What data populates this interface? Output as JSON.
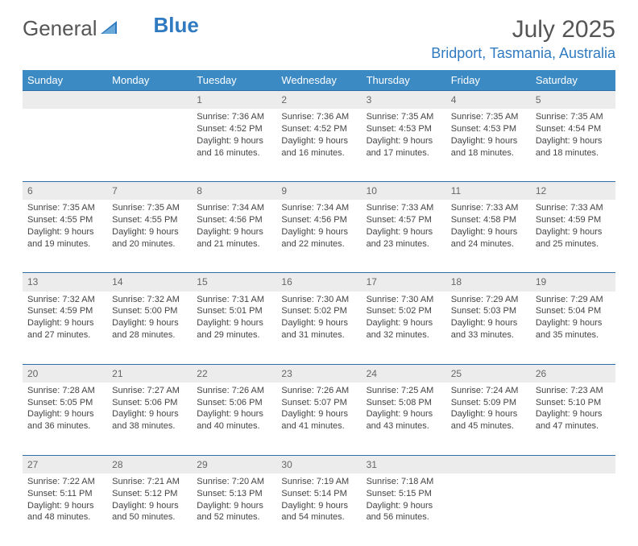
{
  "logo": {
    "general": "General",
    "blue": "Blue"
  },
  "title": "July 2025",
  "location": "Bridport, Tasmania, Australia",
  "colors": {
    "header_bg": "#3b8ac4",
    "accent": "#2f7ac0",
    "daynum_bg": "#ececec",
    "row_border": "#2f6fa8",
    "text": "#444444"
  },
  "weekdays": [
    "Sunday",
    "Monday",
    "Tuesday",
    "Wednesday",
    "Thursday",
    "Friday",
    "Saturday"
  ],
  "weeks": [
    [
      null,
      null,
      {
        "n": "1",
        "sr": "Sunrise: 7:36 AM",
        "ss": "Sunset: 4:52 PM",
        "dl1": "Daylight: 9 hours",
        "dl2": "and 16 minutes."
      },
      {
        "n": "2",
        "sr": "Sunrise: 7:36 AM",
        "ss": "Sunset: 4:52 PM",
        "dl1": "Daylight: 9 hours",
        "dl2": "and 16 minutes."
      },
      {
        "n": "3",
        "sr": "Sunrise: 7:35 AM",
        "ss": "Sunset: 4:53 PM",
        "dl1": "Daylight: 9 hours",
        "dl2": "and 17 minutes."
      },
      {
        "n": "4",
        "sr": "Sunrise: 7:35 AM",
        "ss": "Sunset: 4:53 PM",
        "dl1": "Daylight: 9 hours",
        "dl2": "and 18 minutes."
      },
      {
        "n": "5",
        "sr": "Sunrise: 7:35 AM",
        "ss": "Sunset: 4:54 PM",
        "dl1": "Daylight: 9 hours",
        "dl2": "and 18 minutes."
      }
    ],
    [
      {
        "n": "6",
        "sr": "Sunrise: 7:35 AM",
        "ss": "Sunset: 4:55 PM",
        "dl1": "Daylight: 9 hours",
        "dl2": "and 19 minutes."
      },
      {
        "n": "7",
        "sr": "Sunrise: 7:35 AM",
        "ss": "Sunset: 4:55 PM",
        "dl1": "Daylight: 9 hours",
        "dl2": "and 20 minutes."
      },
      {
        "n": "8",
        "sr": "Sunrise: 7:34 AM",
        "ss": "Sunset: 4:56 PM",
        "dl1": "Daylight: 9 hours",
        "dl2": "and 21 minutes."
      },
      {
        "n": "9",
        "sr": "Sunrise: 7:34 AM",
        "ss": "Sunset: 4:56 PM",
        "dl1": "Daylight: 9 hours",
        "dl2": "and 22 minutes."
      },
      {
        "n": "10",
        "sr": "Sunrise: 7:33 AM",
        "ss": "Sunset: 4:57 PM",
        "dl1": "Daylight: 9 hours",
        "dl2": "and 23 minutes."
      },
      {
        "n": "11",
        "sr": "Sunrise: 7:33 AM",
        "ss": "Sunset: 4:58 PM",
        "dl1": "Daylight: 9 hours",
        "dl2": "and 24 minutes."
      },
      {
        "n": "12",
        "sr": "Sunrise: 7:33 AM",
        "ss": "Sunset: 4:59 PM",
        "dl1": "Daylight: 9 hours",
        "dl2": "and 25 minutes."
      }
    ],
    [
      {
        "n": "13",
        "sr": "Sunrise: 7:32 AM",
        "ss": "Sunset: 4:59 PM",
        "dl1": "Daylight: 9 hours",
        "dl2": "and 27 minutes."
      },
      {
        "n": "14",
        "sr": "Sunrise: 7:32 AM",
        "ss": "Sunset: 5:00 PM",
        "dl1": "Daylight: 9 hours",
        "dl2": "and 28 minutes."
      },
      {
        "n": "15",
        "sr": "Sunrise: 7:31 AM",
        "ss": "Sunset: 5:01 PM",
        "dl1": "Daylight: 9 hours",
        "dl2": "and 29 minutes."
      },
      {
        "n": "16",
        "sr": "Sunrise: 7:30 AM",
        "ss": "Sunset: 5:02 PM",
        "dl1": "Daylight: 9 hours",
        "dl2": "and 31 minutes."
      },
      {
        "n": "17",
        "sr": "Sunrise: 7:30 AM",
        "ss": "Sunset: 5:02 PM",
        "dl1": "Daylight: 9 hours",
        "dl2": "and 32 minutes."
      },
      {
        "n": "18",
        "sr": "Sunrise: 7:29 AM",
        "ss": "Sunset: 5:03 PM",
        "dl1": "Daylight: 9 hours",
        "dl2": "and 33 minutes."
      },
      {
        "n": "19",
        "sr": "Sunrise: 7:29 AM",
        "ss": "Sunset: 5:04 PM",
        "dl1": "Daylight: 9 hours",
        "dl2": "and 35 minutes."
      }
    ],
    [
      {
        "n": "20",
        "sr": "Sunrise: 7:28 AM",
        "ss": "Sunset: 5:05 PM",
        "dl1": "Daylight: 9 hours",
        "dl2": "and 36 minutes."
      },
      {
        "n": "21",
        "sr": "Sunrise: 7:27 AM",
        "ss": "Sunset: 5:06 PM",
        "dl1": "Daylight: 9 hours",
        "dl2": "and 38 minutes."
      },
      {
        "n": "22",
        "sr": "Sunrise: 7:26 AM",
        "ss": "Sunset: 5:06 PM",
        "dl1": "Daylight: 9 hours",
        "dl2": "and 40 minutes."
      },
      {
        "n": "23",
        "sr": "Sunrise: 7:26 AM",
        "ss": "Sunset: 5:07 PM",
        "dl1": "Daylight: 9 hours",
        "dl2": "and 41 minutes."
      },
      {
        "n": "24",
        "sr": "Sunrise: 7:25 AM",
        "ss": "Sunset: 5:08 PM",
        "dl1": "Daylight: 9 hours",
        "dl2": "and 43 minutes."
      },
      {
        "n": "25",
        "sr": "Sunrise: 7:24 AM",
        "ss": "Sunset: 5:09 PM",
        "dl1": "Daylight: 9 hours",
        "dl2": "and 45 minutes."
      },
      {
        "n": "26",
        "sr": "Sunrise: 7:23 AM",
        "ss": "Sunset: 5:10 PM",
        "dl1": "Daylight: 9 hours",
        "dl2": "and 47 minutes."
      }
    ],
    [
      {
        "n": "27",
        "sr": "Sunrise: 7:22 AM",
        "ss": "Sunset: 5:11 PM",
        "dl1": "Daylight: 9 hours",
        "dl2": "and 48 minutes."
      },
      {
        "n": "28",
        "sr": "Sunrise: 7:21 AM",
        "ss": "Sunset: 5:12 PM",
        "dl1": "Daylight: 9 hours",
        "dl2": "and 50 minutes."
      },
      {
        "n": "29",
        "sr": "Sunrise: 7:20 AM",
        "ss": "Sunset: 5:13 PM",
        "dl1": "Daylight: 9 hours",
        "dl2": "and 52 minutes."
      },
      {
        "n": "30",
        "sr": "Sunrise: 7:19 AM",
        "ss": "Sunset: 5:14 PM",
        "dl1": "Daylight: 9 hours",
        "dl2": "and 54 minutes."
      },
      {
        "n": "31",
        "sr": "Sunrise: 7:18 AM",
        "ss": "Sunset: 5:15 PM",
        "dl1": "Daylight: 9 hours",
        "dl2": "and 56 minutes."
      },
      null,
      null
    ]
  ]
}
